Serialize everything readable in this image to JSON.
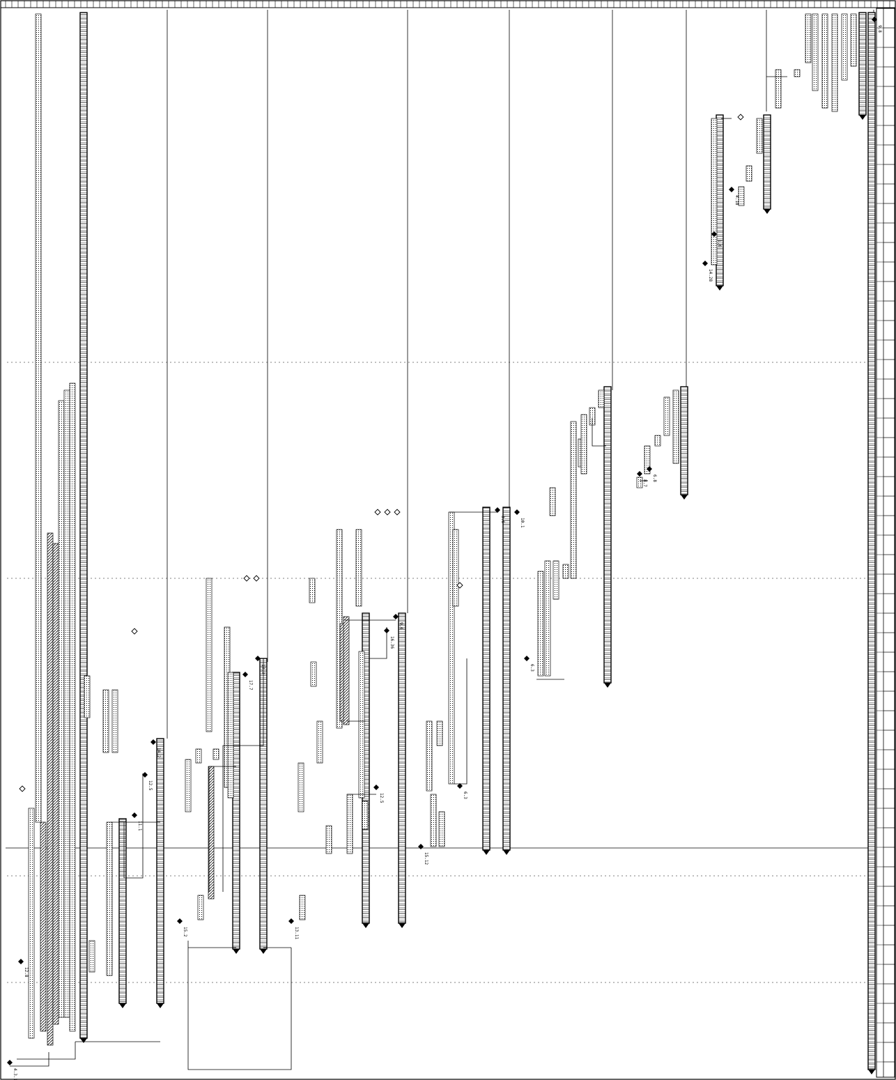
{
  "diagram": {
    "type": "rotated-gantt-chart",
    "orientation": "rotated-90-cw",
    "colors": {
      "ink": "#000000",
      "paper": "#ffffff",
      "task_fill": "#bdbdbd",
      "summary_fill": "#000000"
    },
    "milestone_labels": [
      "4.3.1",
      "12.8",
      "11.1",
      "12.5",
      "14.2",
      "15.2",
      "13.3",
      "17.7",
      "13.11",
      "15.12",
      "9.6",
      "16.36",
      "12.5",
      "6.3",
      "3.6",
      "10.1",
      "6.3",
      "8.7",
      "6.8",
      "14.28",
      "4.18",
      "1.6",
      "9.8"
    ],
    "legend_icon": "diamond-icon",
    "bar_icon": "hatched-bar-icon"
  }
}
